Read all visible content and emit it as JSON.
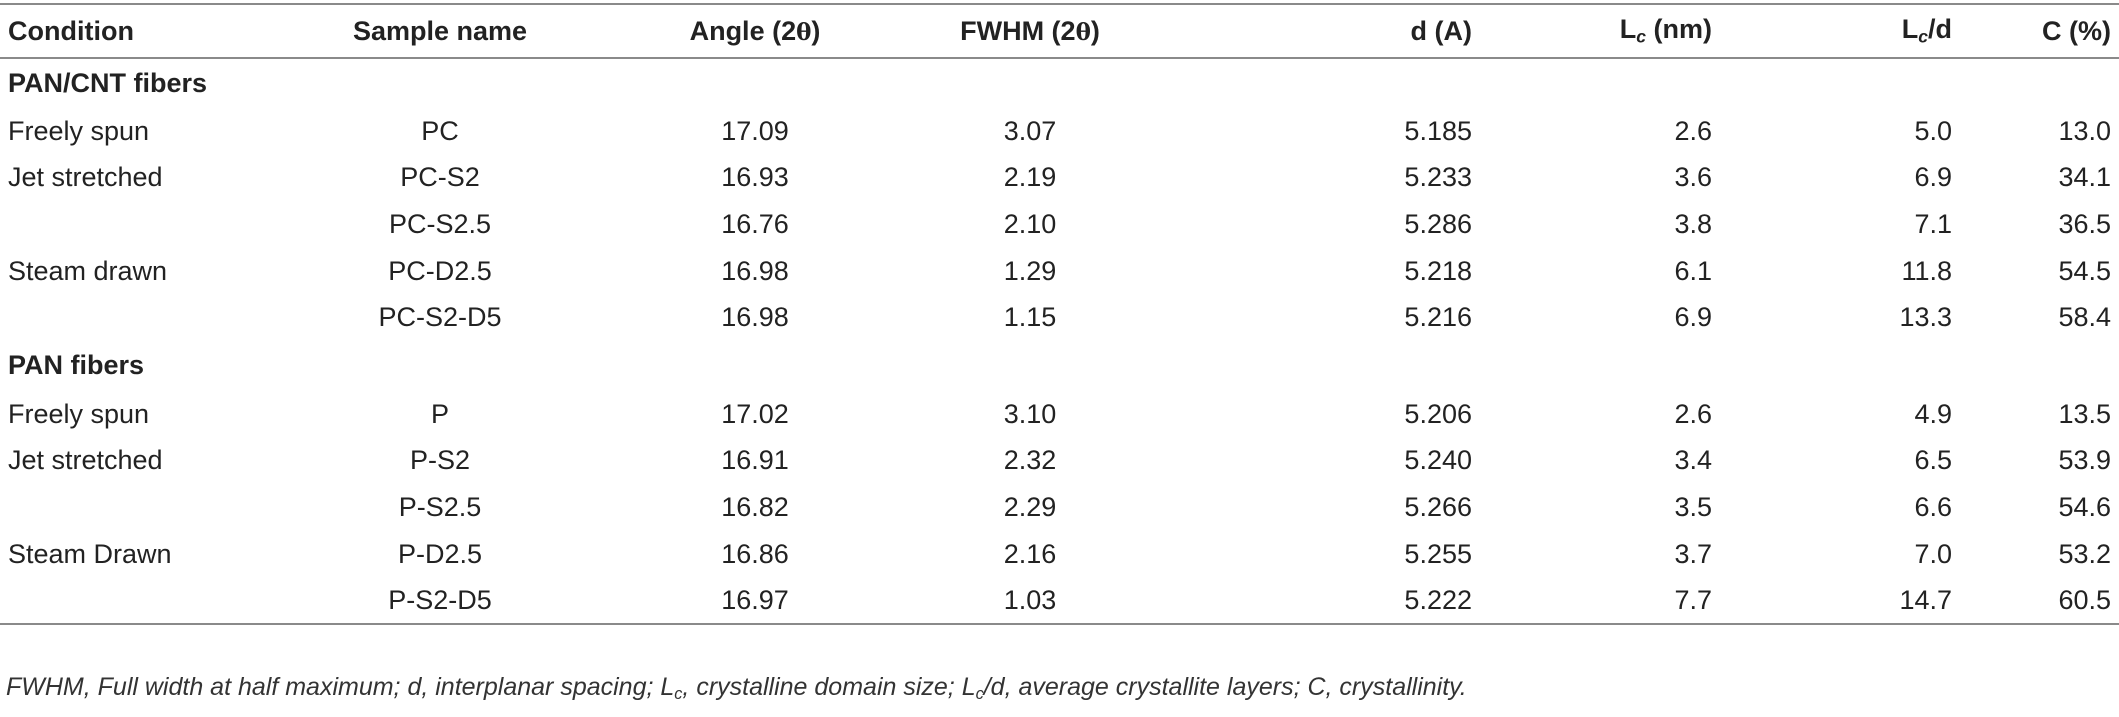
{
  "table": {
    "headers": {
      "condition": "Condition",
      "sample_name": "Sample name",
      "angle": "Angle (2",
      "angle_theta": "θ",
      "angle_close": ")",
      "fwhm": "FWHM (2",
      "fwhm_theta": "θ",
      "fwhm_close": ")",
      "d": "d (A)",
      "lc_base": "L",
      "lc_sub": "c",
      "lc_unit": " (nm)",
      "lcd_base": "L",
      "lcd_sub": "c",
      "lcd_rest": "/d",
      "c": "C (%)"
    },
    "groups": [
      {
        "title": "PAN/CNT fibers",
        "rows": [
          {
            "condition": "Freely spun",
            "sample": "PC",
            "angle": "17.09",
            "fwhm": "3.07",
            "d": "5.185",
            "lc": "2.6",
            "lcd": "5.0",
            "c": "13.0"
          },
          {
            "condition": "Jet stretched",
            "sample": "PC-S2",
            "angle": "16.93",
            "fwhm": "2.19",
            "d": "5.233",
            "lc": "3.6",
            "lcd": "6.9",
            "c": "34.1"
          },
          {
            "condition": "",
            "sample": "PC-S2.5",
            "angle": "16.76",
            "fwhm": "2.10",
            "d": "5.286",
            "lc": "3.8",
            "lcd": "7.1",
            "c": "36.5"
          },
          {
            "condition": "Steam drawn",
            "sample": "PC-D2.5",
            "angle": "16.98",
            "fwhm": "1.29",
            "d": "5.218",
            "lc": "6.1",
            "lcd": "11.8",
            "c": "54.5"
          },
          {
            "condition": "",
            "sample": "PC-S2-D5",
            "angle": "16.98",
            "fwhm": "1.15",
            "d": "5.216",
            "lc": "6.9",
            "lcd": "13.3",
            "c": "58.4"
          }
        ]
      },
      {
        "title": "PAN fibers",
        "rows": [
          {
            "condition": "Freely spun",
            "sample": "P",
            "angle": "17.02",
            "fwhm": "3.10",
            "d": "5.206",
            "lc": "2.6",
            "lcd": "4.9",
            "c": "13.5"
          },
          {
            "condition": "Jet stretched",
            "sample": "P-S2",
            "angle": "16.91",
            "fwhm": "2.32",
            "d": "5.240",
            "lc": "3.4",
            "lcd": "6.5",
            "c": "53.9"
          },
          {
            "condition": "",
            "sample": "P-S2.5",
            "angle": "16.82",
            "fwhm": "2.29",
            "d": "5.266",
            "lc": "3.5",
            "lcd": "6.6",
            "c": "54.6"
          },
          {
            "condition": "Steam Drawn",
            "sample": "P-D2.5",
            "angle": "16.86",
            "fwhm": "2.16",
            "d": "5.255",
            "lc": "3.7",
            "lcd": "7.0",
            "c": "53.2"
          },
          {
            "condition": "",
            "sample": "P-S2-D5",
            "angle": "16.97",
            "fwhm": "1.03",
            "d": "5.222",
            "lc": "7.7",
            "lcd": "14.7",
            "c": "60.5"
          }
        ]
      }
    ]
  },
  "footnote": {
    "part1": "FWHM, Full width at half maximum; d, interplanar spacing; L",
    "sub1": "c",
    "part2": ", crystalline domain size; L",
    "sub2": "c",
    "part3": "/d, average crystallite layers; C, crystallinity."
  }
}
